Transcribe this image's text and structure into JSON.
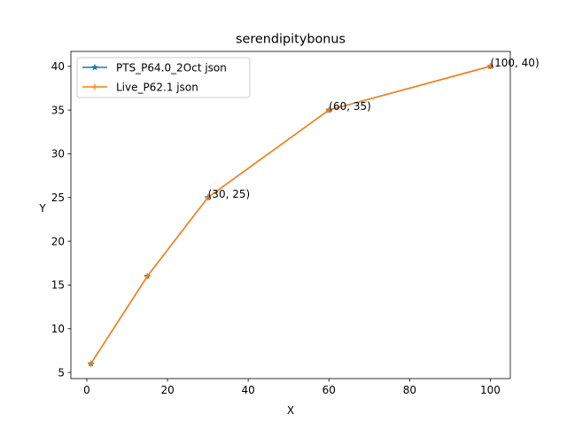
{
  "chart_data": {
    "type": "line",
    "title": "serendipitybonus",
    "xlabel": "X",
    "ylabel": "Y",
    "xlim": [
      -3.95,
      104.95
    ],
    "ylim": [
      4.3,
      41.7
    ],
    "xticks": [
      0,
      20,
      40,
      60,
      80,
      100
    ],
    "yticks": [
      5,
      10,
      15,
      20,
      25,
      30,
      35,
      40
    ],
    "grid": false,
    "legend": {
      "placement": "top-left"
    },
    "series": [
      {
        "name": "PTS_P64.0_2Oct json",
        "color": "#1f77b4",
        "marker": "star",
        "x": [
          1,
          15,
          30,
          60,
          100
        ],
        "y": [
          6,
          16,
          25,
          35,
          40
        ]
      },
      {
        "name": "Live_P62.1 json",
        "color": "#ff7f0e",
        "marker": "plus",
        "x": [
          1,
          15,
          30,
          60,
          100
        ],
        "y": [
          6,
          16,
          25,
          35,
          40
        ]
      }
    ],
    "annotations": [
      {
        "text": "(30, 25)",
        "x": 30,
        "y": 25
      },
      {
        "text": "(60, 35)",
        "x": 60,
        "y": 35
      },
      {
        "text": "(100, 40)",
        "x": 100,
        "y": 40
      }
    ]
  }
}
